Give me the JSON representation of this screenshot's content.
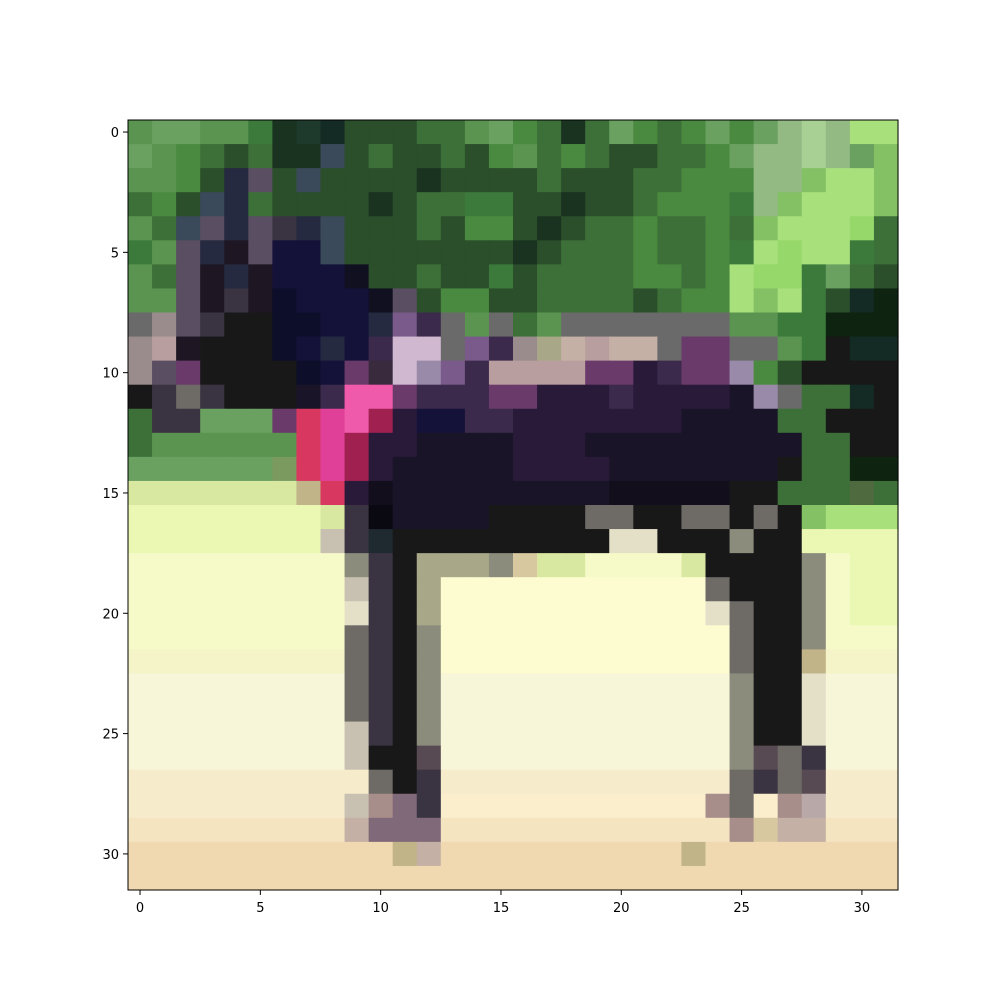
{
  "chart_data": {
    "type": "heatmap",
    "title": "",
    "xlabel": "",
    "ylabel": "",
    "grid": false,
    "x_range": [
      -0.5,
      31.5
    ],
    "y_range": [
      31.5,
      -0.5
    ],
    "x_ticks": [
      0,
      5,
      10,
      15,
      20,
      25,
      30
    ],
    "y_ticks": [
      0,
      5,
      10,
      15,
      20,
      25,
      30
    ],
    "rows": 32,
    "cols": 32,
    "palette": {
      "A": "#5a9450",
      "B": "#3d7038",
      "C": "#2b4e2b",
      "D": "#1a3320",
      "E": "#1e3a2c",
      "F": "#3c7a3c",
      "G": "#4a8a40",
      "H": "#6aa060",
      "I": "#94ba84",
      "J": "#a8d094",
      "K": "#84c064",
      "L": "#a8e07c",
      "M": "#96d86a",
      "N": "#3a4a5a",
      "O": "#252a40",
      "P": "#15123a",
      "Q": "#0c0e2a",
      "R": "#101020",
      "S": "#1e1622",
      "T": "#3a3442",
      "U": "#5a4e62",
      "V": "#6a6a6a",
      "W": "#9a8c8c",
      "X": "#b89e9e",
      "Y": "#181818",
      "Z": "#142a24",
      "a": "#3a2a3e",
      "b": "#6a3a6a",
      "c": "#e04098",
      "d": "#f05aaa",
      "e": "#d83860",
      "f": "#a02050",
      "g": "#d0b8d0",
      "h": "#9a8aaa",
      "i": "#7a5a8a",
      "j": "#3c2a4c",
      "k": "#2a1a3a",
      "l": "#1a1428",
      "m": "#120e1c",
      "n": "#0a0810",
      "o": "#1e2a30",
      "p": "#d8e8a0",
      "q": "#eaf8b4",
      "r": "#f6fac8",
      "s": "#fcfcd0",
      "t": "#f4f4c8",
      "u": "#f8f6d8",
      "v": "#f6eccc",
      "w": "#f4e4c0",
      "x": "#f0d8b0",
      "y": "#faeecc",
      "z": "#d8c8a0",
      "0": "#a8a888",
      "1": "#8c8c7c",
      "2": "#6e6a66",
      "3": "#c8c0b0",
      "4": "#e4e0c8",
      "5": "#a88e8a",
      "6": "#806a7a",
      "7": "#584a52",
      "8": "#b8a8a8",
      "9": "#c4b0a4",
      "!": "#0e2410",
      "#": "#c8e898",
      "$": "#a0c080",
      "%": "#7a9a60",
      "&": "#506a40",
      "*": "#c0b488"
    },
    "grid_rows": [
      "AHHAAFDEZCCCBBAHGBDBHGBGHGHIJILL",
      "HAGBCBDDNCBCCBCGABGBCCBBGHIIJIHK",
      "AAGCOUCNCCCCDCCCCBCCCBBGGGIIKLLK",
      "BGCNOBCCCCDCBBFFCCDCCBGGGFIKLLLK",
      "ABNUOUTONCCCBCGGCDCBBGBBGBKLLLMB",
      "FAUOSUPPNCCCCCCCDCBBBGBBGFLMLLFB",
      "ABUSOSPPPRCCBCCFCBBBBGGBGLMMFHBC",
      "AAUSTSQPPPRUCGGCCBBBBCBGGLKLFCZ!",
      "VWUTYYQQPPOijVAVBAVVVVVVVAAFF!!!",
      "WXSYYYQPOPjggVijW09X99VbbVVAFYZZ",
      "WUbYYYYQPbaghijXXXXbbkjbbhGCYYYY",
      "YT2TYYYljddbjjjbbkkkjkkkklhVBBZY",
      "BTTHHHbecdfkPPjjkkkkkkkllllBBYYY",
      "BAAAAAAecfkkllllkkklllllllllBBYY",
      "HHHHHH%ecfklllllkkkklllllllYBB!!",
      "ppppppp*ekmlllllllllmmmmmYYBBB&B",
      "qqqqqqqqpTnllllYYYY22YY22Y2YKLLL",
      "qqqqqqqq3ToYYYYYYYYY44YYY1YYqqqq",
      "rrrrrrrrr1TY0001zpprrrrpYYYY1rqq",
      "rrrrrrrrr3TY0sssssssssss2YYY1rqq",
      "rrrrrrrrr4TY0sssssssssss42YY1rqq",
      "rrrrrrrrr2TY1ssssssssssss2YY1rrr",
      "ttttttttt2TY1ssssssssssss2YY*ttt",
      "uuuuuuuuu2TY1uuuuuuuuuuuu1YY4uuu",
      "uuuuuuuuu2TY1uuuuuuuuuuuu1YY4uuu",
      "uuuuuuuuu3TY1uuuuuuuuuuuu1YY4uuu",
      "uuuuuuuuu3YY7uuuuuuuuuuuu172Tuuu",
      "vvvvvvvvvv2YTvvvvvvvvvvvv2T27vvv",
      "vvvvvvvvv356Tyyyyyyyyyyy52y58vvv",
      "wwwwwwwww9666wwwwwwwwwwww5z99www",
      "xxxxxxxxxxx*9xxxxxxxxxx*xxxxxxxx",
      "xxxxxxxxxxxxxxxxxxxxxxxxxxxxxxxx"
    ]
  }
}
